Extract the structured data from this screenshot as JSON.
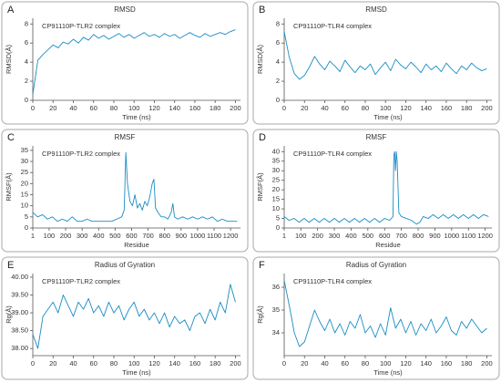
{
  "chart_data": [
    {
      "type": "line",
      "panel_label": "A",
      "title": "RMSD",
      "x_label": "Time (ns)",
      "y_label": "RMSD(Å)",
      "x": [
        0,
        5,
        10,
        15,
        20,
        25,
        30,
        35,
        40,
        45,
        50,
        55,
        60,
        65,
        70,
        75,
        80,
        85,
        90,
        95,
        100,
        105,
        110,
        115,
        120,
        125,
        130,
        135,
        140,
        145,
        150,
        155,
        160,
        165,
        170,
        175,
        180,
        185,
        190,
        195,
        200
      ],
      "series": [
        {
          "name": "CP91110P-TLR2 complex",
          "color": "#1a8cc4",
          "values": [
            0.6,
            4.2,
            4.8,
            5.3,
            5.8,
            5.5,
            6.1,
            5.9,
            6.4,
            6.0,
            6.6,
            6.3,
            6.9,
            6.5,
            6.8,
            6.4,
            6.7,
            7.0,
            6.6,
            6.9,
            6.5,
            6.8,
            7.1,
            6.7,
            6.9,
            6.6,
            7.0,
            6.7,
            6.9,
            6.5,
            6.8,
            7.1,
            6.8,
            6.6,
            7.0,
            6.7,
            6.9,
            7.1,
            6.9,
            7.2,
            7.4
          ]
        }
      ],
      "xlim": [
        0,
        205
      ],
      "ylim": [
        0,
        8.6
      ],
      "xticks": [
        0,
        20,
        40,
        60,
        80,
        100,
        120,
        140,
        160,
        180,
        200
      ],
      "yticks": [
        0,
        2,
        4,
        6,
        8
      ]
    },
    {
      "type": "line",
      "panel_label": "B",
      "title": "RMSD",
      "x_label": "Time (ns)",
      "y_label": "RMSD(Å)",
      "x": [
        0,
        5,
        10,
        15,
        20,
        25,
        30,
        35,
        40,
        45,
        50,
        55,
        60,
        65,
        70,
        75,
        80,
        85,
        90,
        95,
        100,
        105,
        110,
        115,
        120,
        125,
        130,
        135,
        140,
        145,
        150,
        155,
        160,
        165,
        170,
        175,
        180,
        185,
        190,
        195,
        200
      ],
      "series": [
        {
          "name": "CP91110P-TLR4 complex",
          "color": "#1a8cc4",
          "values": [
            7.2,
            4.5,
            2.8,
            2.2,
            2.6,
            3.5,
            4.6,
            3.8,
            3.2,
            4.1,
            3.6,
            3.0,
            4.2,
            3.5,
            2.9,
            3.6,
            3.2,
            3.8,
            2.7,
            3.4,
            4.0,
            3.1,
            4.3,
            3.7,
            3.3,
            4.0,
            3.5,
            2.9,
            3.8,
            3.2,
            3.6,
            3.0,
            3.9,
            3.3,
            2.8,
            3.6,
            3.2,
            3.9,
            3.4,
            3.1,
            3.3
          ]
        }
      ],
      "xlim": [
        0,
        205
      ],
      "ylim": [
        0,
        8.6
      ],
      "xticks": [
        0,
        20,
        40,
        60,
        80,
        100,
        120,
        140,
        160,
        180,
        200
      ],
      "yticks": [
        0,
        2,
        4,
        6,
        8
      ]
    },
    {
      "type": "line",
      "panel_label": "C",
      "title": "RMSF",
      "x_label": "Residue",
      "y_label": "RMSF(Å)",
      "x": [
        1,
        30,
        60,
        90,
        120,
        150,
        180,
        210,
        240,
        270,
        300,
        330,
        360,
        390,
        420,
        450,
        480,
        510,
        540,
        555,
        565,
        575,
        590,
        605,
        620,
        635,
        650,
        665,
        680,
        695,
        710,
        725,
        735,
        745,
        760,
        780,
        800,
        820,
        840,
        850,
        860,
        880,
        910,
        940,
        970,
        1000,
        1030,
        1060,
        1090,
        1120,
        1150,
        1180,
        1210,
        1240
      ],
      "series": [
        {
          "name": "CP91110P-TLR2 complex",
          "color": "#1a8cc4",
          "values": [
            7,
            5,
            6,
            4,
            5,
            3,
            4,
            3,
            5,
            3,
            3,
            4,
            3,
            3,
            3,
            3,
            3,
            4,
            5,
            8,
            34,
            20,
            12,
            10,
            15,
            9,
            11,
            8,
            12,
            10,
            14,
            20,
            22,
            9,
            7,
            5,
            5,
            4,
            7,
            11,
            5,
            4,
            5,
            4,
            5,
            4,
            5,
            4,
            5,
            3,
            4,
            3,
            3,
            3
          ]
        }
      ],
      "xlim": [
        1,
        1260
      ],
      "ylim": [
        0,
        37
      ],
      "xticks": [
        1,
        100,
        200,
        300,
        400,
        500,
        600,
        700,
        800,
        900,
        1000,
        1100,
        1200
      ],
      "yticks": [
        0,
        5,
        10,
        15,
        20,
        25,
        30,
        35
      ]
    },
    {
      "type": "line",
      "panel_label": "D",
      "title": "RMSF",
      "x_label": "Residue",
      "y_label": "RMSF(Å)",
      "x": [
        1,
        30,
        60,
        90,
        120,
        150,
        180,
        210,
        240,
        270,
        300,
        330,
        360,
        390,
        420,
        450,
        480,
        510,
        540,
        570,
        600,
        630,
        650,
        655,
        660,
        665,
        670,
        675,
        685,
        700,
        730,
        760,
        790,
        810,
        830,
        860,
        890,
        920,
        950,
        980,
        1010,
        1040,
        1070,
        1100,
        1130,
        1160,
        1190,
        1220
      ],
      "series": [
        {
          "name": "CP91110P-TLR4 complex",
          "color": "#1a8cc4",
          "values": [
            6,
            4,
            5,
            3,
            5,
            3,
            5,
            3,
            5,
            3,
            5,
            3,
            5,
            3,
            5,
            3,
            5,
            3,
            5,
            3,
            5,
            4,
            6,
            38,
            40,
            30,
            40,
            35,
            8,
            6,
            5,
            4,
            2,
            3,
            6,
            5,
            7,
            5,
            7,
            5,
            7,
            5,
            7,
            5,
            7,
            5,
            7,
            6
          ]
        }
      ],
      "xlim": [
        1,
        1240
      ],
      "ylim": [
        0,
        43
      ],
      "xticks": [
        1,
        100,
        200,
        300,
        400,
        500,
        600,
        700,
        800,
        900,
        1000,
        1100,
        1200
      ],
      "yticks": [
        0,
        5,
        10,
        15,
        20,
        25,
        30,
        35,
        40
      ]
    },
    {
      "type": "line",
      "panel_label": "E",
      "title": "Radius of Gyration",
      "x_label": "Time (ns)",
      "y_label": "Rg(Å)",
      "x": [
        0,
        5,
        10,
        15,
        20,
        25,
        30,
        35,
        40,
        45,
        50,
        55,
        60,
        65,
        70,
        75,
        80,
        85,
        90,
        95,
        100,
        105,
        110,
        115,
        120,
        125,
        130,
        135,
        140,
        145,
        150,
        155,
        160,
        165,
        170,
        175,
        180,
        185,
        190,
        195,
        200
      ],
      "series": [
        {
          "name": "CP91110P-TLR2 complex",
          "color": "#1a8cc4",
          "values": [
            38.4,
            38.0,
            38.9,
            39.1,
            39.3,
            39.0,
            39.5,
            39.2,
            38.9,
            39.3,
            39.1,
            39.4,
            39.0,
            39.2,
            38.9,
            39.3,
            39.0,
            39.2,
            38.8,
            39.1,
            39.3,
            38.9,
            39.1,
            38.8,
            39.0,
            38.7,
            39.0,
            38.6,
            38.9,
            38.7,
            38.8,
            38.5,
            38.9,
            39.0,
            38.7,
            39.1,
            38.8,
            39.3,
            39.0,
            39.8,
            39.3
          ]
        }
      ],
      "xlim": [
        0,
        205
      ],
      "ylim": [
        37.8,
        40.1
      ],
      "xticks": [
        0,
        20,
        40,
        60,
        80,
        100,
        120,
        140,
        160,
        180,
        200
      ],
      "yticks": [
        {
          "value": 38,
          "label": "38.00"
        },
        {
          "value": 38.5,
          "label": "38.50"
        },
        {
          "value": 39,
          "label": "39.00"
        },
        {
          "value": 39.5,
          "label": "39.50"
        },
        {
          "value": 40,
          "label": "40.00"
        }
      ]
    },
    {
      "type": "line",
      "panel_label": "F",
      "title": "Radius of Gyration",
      "x_label": "Time (ns)",
      "y_label": "Rg(Å)",
      "x": [
        0,
        5,
        10,
        15,
        20,
        25,
        30,
        35,
        40,
        45,
        50,
        55,
        60,
        65,
        70,
        75,
        80,
        85,
        90,
        95,
        100,
        105,
        110,
        115,
        120,
        125,
        130,
        135,
        140,
        145,
        150,
        155,
        160,
        165,
        170,
        175,
        180,
        185,
        190,
        195,
        200
      ],
      "series": [
        {
          "name": "CP91110P-TLR4 complex",
          "color": "#1a8cc4",
          "values": [
            36.3,
            35.2,
            34.0,
            33.4,
            33.6,
            34.3,
            35.0,
            34.5,
            34.1,
            34.6,
            34.0,
            34.4,
            33.9,
            34.5,
            34.2,
            34.8,
            34.0,
            34.3,
            33.8,
            34.4,
            33.9,
            35.1,
            34.2,
            34.6,
            34.0,
            34.5,
            33.9,
            34.4,
            34.1,
            34.6,
            34.0,
            34.3,
            34.7,
            34.1,
            33.9,
            34.5,
            34.2,
            34.6,
            34.3,
            34.0,
            34.2
          ]
        }
      ],
      "xlim": [
        0,
        205
      ],
      "ylim": [
        33,
        36.6
      ],
      "xticks": [
        0,
        20,
        40,
        60,
        80,
        100,
        120,
        140,
        160,
        180,
        200
      ],
      "yticks": [
        34,
        35,
        36
      ]
    }
  ]
}
